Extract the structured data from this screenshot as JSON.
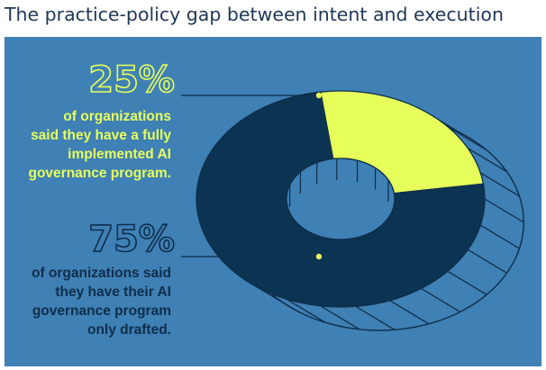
{
  "title": "The practice-policy gap between intent and execution",
  "colors": {
    "panel": "#3f80b5",
    "implemented": "#e6ff5a",
    "drafted": "#0b3352",
    "outline": "#0f2e4a"
  },
  "chart_data": {
    "type": "pie",
    "variant": "3d-donut",
    "slices": [
      {
        "value": 25,
        "label": "25%",
        "caption_lines": [
          "of organizations",
          "said they have a fully",
          "implemented AI",
          "governance program."
        ]
      },
      {
        "value": 75,
        "label": "75%",
        "caption_lines": [
          "of organizations said",
          "they have their AI",
          "governance program",
          "only drafted."
        ]
      }
    ]
  }
}
